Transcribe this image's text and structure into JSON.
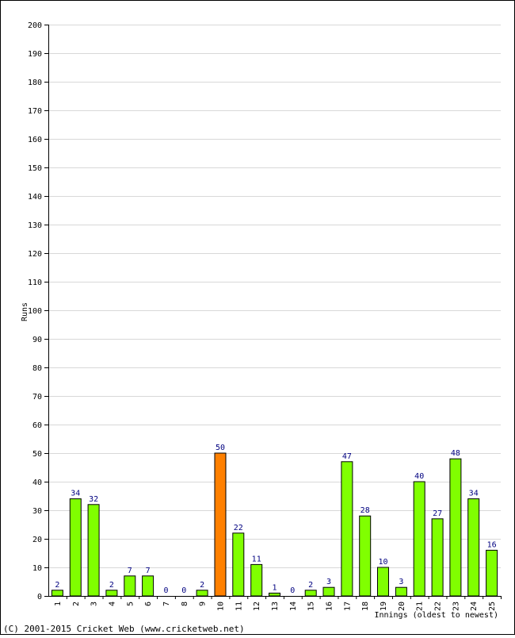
{
  "chart_data": {
    "type": "bar",
    "categories": [
      "1",
      "2",
      "3",
      "4",
      "5",
      "6",
      "7",
      "8",
      "9",
      "10",
      "11",
      "12",
      "13",
      "14",
      "15",
      "16",
      "17",
      "18",
      "19",
      "20",
      "21",
      "22",
      "23",
      "24",
      "25"
    ],
    "values": [
      2,
      34,
      32,
      2,
      7,
      7,
      0,
      0,
      2,
      50,
      22,
      11,
      1,
      0,
      2,
      3,
      47,
      28,
      10,
      3,
      40,
      27,
      48,
      34,
      16
    ],
    "ylabel": "Runs",
    "xlabel": "Innings (oldest to newest)",
    "ylim": [
      0,
      200
    ],
    "ytick_step": 10,
    "grid": true,
    "highlight_index": 9,
    "colors": {
      "bar": "#80ff00",
      "highlight": "#ff8000",
      "bar_stroke": "#000000",
      "grid": "#d8d8d8",
      "data_label": "#000080"
    }
  },
  "footer": {
    "copyright": "(C) 2001-2015 Cricket Web (www.cricketweb.net)"
  }
}
